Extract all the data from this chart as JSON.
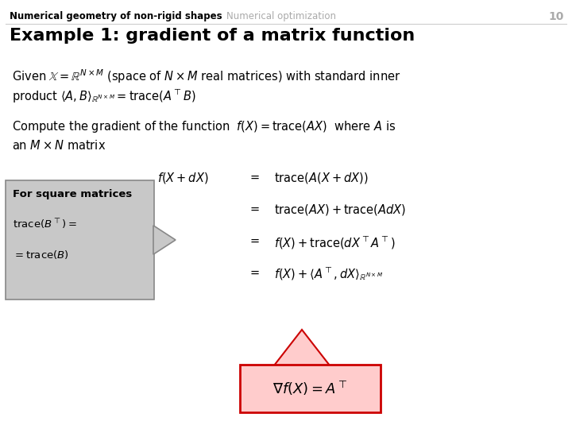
{
  "bg_color": "#ffffff",
  "header_left": "Numerical geometry of non-rigid shapes",
  "header_mid": "Numerical optimization",
  "header_num": "10",
  "title": "Example 1: gradient of a matrix function",
  "given_text1": "Given $\\mathbb{X} = \\mathbb{R}^{N \\times M}$ (space of $N \\times M$ real matrices) with standard inner",
  "given_text2": "product $\\langle A, B\\rangle_{\\mathbb{R}^{N \\times M}} = \\mathrm{trace}(A^{\\top} B)$",
  "compute_text1": "Compute the gradient of the function  $f(X) = \\mathrm{trace}(AX)$  where $A$ is",
  "compute_text2": "an $M \\times N$ matrix",
  "eq_left": "$f(X + dX)$",
  "eq1r": "$\\mathrm{trace}(A(X + dX))$",
  "eq2r": "$\\mathrm{trace}(AX) + \\mathrm{trace}(AdX)$",
  "eq3r": "$f(X) + \\mathrm{trace}(dX^{\\top} A^{\\top})$",
  "eq4r": "$f(X) + \\langle A^{\\top}, dX\\rangle_{\\mathbb{R}^{N \\times M}}$",
  "final_eq": "$\\nabla f(X) = A^{\\top}$",
  "box_title": "For square matrices",
  "box_line1": "$\\mathrm{trace}(B^{\\top}) =$",
  "box_line2": "$= \\mathrm{trace}(B)$",
  "header_left_color": "#000000",
  "header_mid_color": "#aaaaaa",
  "header_num_color": "#aaaaaa",
  "title_color": "#000000",
  "body_color": "#000000",
  "box_bg_color": "#c8c8c8",
  "box_border_color": "#888888",
  "final_box_bg": "#ffcccc",
  "final_box_border": "#cc0000"
}
